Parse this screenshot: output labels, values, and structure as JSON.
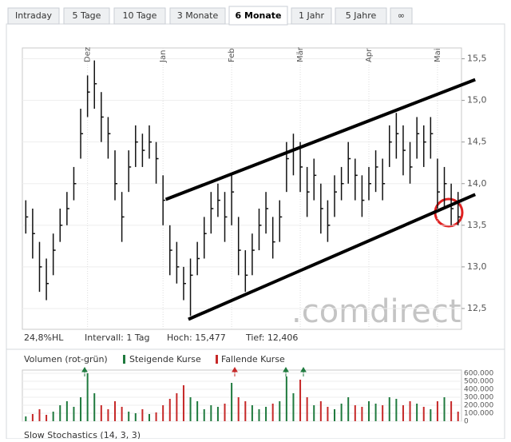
{
  "tabs": [
    "Intraday",
    "5 Tage",
    "10 Tage",
    "3 Monate",
    "6 Monate",
    "1 Jahr",
    "5 Jahre",
    "∞"
  ],
  "active_tab": 4,
  "info": [
    "24,8%HL",
    "Intervall: 1 Tag",
    "Hoch: 15,477",
    "Tief: 12,406"
  ],
  "volume_legend": {
    "title": "Volumen (rot-grün)",
    "up": "Steigende Kurse",
    "down": "Fallende Kurse"
  },
  "lower_panel_title": "Slow Stochastics (14, 3, 3)",
  "watermark": ".comdirect",
  "chart_data": [
    {
      "type": "ohlc",
      "grid": true,
      "color": "#111111",
      "categories": [
        null,
        null,
        null,
        null,
        null,
        null,
        null,
        null,
        null,
        "Dez",
        null,
        null,
        null,
        null,
        null,
        null,
        null,
        null,
        null,
        null,
        "Jan",
        null,
        null,
        null,
        null,
        null,
        null,
        null,
        null,
        null,
        "Feb",
        null,
        null,
        null,
        null,
        null,
        null,
        null,
        null,
        null,
        "Mär",
        null,
        null,
        null,
        null,
        null,
        null,
        null,
        null,
        null,
        "Apr",
        null,
        null,
        null,
        null,
        null,
        null,
        null,
        null,
        null,
        "Mai",
        null,
        null,
        null
      ],
      "high": [
        13.8,
        13.7,
        13.3,
        13.1,
        13.4,
        13.7,
        13.9,
        14.2,
        14.9,
        15.3,
        15.48,
        15.1,
        14.8,
        14.4,
        13.9,
        14.4,
        14.7,
        14.6,
        14.7,
        14.5,
        14.1,
        13.5,
        13.3,
        13.0,
        13.1,
        13.3,
        13.6,
        13.9,
        14.0,
        13.9,
        14.1,
        13.6,
        13.2,
        13.4,
        13.7,
        13.9,
        13.6,
        13.8,
        14.5,
        14.6,
        14.5,
        14.2,
        14.3,
        14.0,
        13.8,
        14.1,
        14.2,
        14.5,
        14.3,
        14.1,
        14.2,
        14.4,
        14.3,
        14.7,
        14.85,
        14.7,
        14.5,
        14.8,
        14.7,
        14.8,
        14.3,
        14.2,
        14.0,
        13.9
      ],
      "low": [
        13.4,
        13.1,
        12.7,
        12.6,
        12.9,
        13.3,
        13.5,
        13.8,
        14.3,
        14.8,
        14.9,
        14.5,
        14.3,
        13.8,
        13.3,
        13.9,
        14.2,
        14.2,
        14.3,
        14.0,
        13.5,
        12.9,
        12.8,
        12.6,
        12.41,
        12.9,
        13.1,
        13.4,
        13.6,
        13.3,
        13.5,
        12.9,
        12.7,
        12.9,
        13.2,
        13.4,
        13.1,
        13.3,
        13.9,
        14.1,
        13.9,
        13.6,
        13.8,
        13.4,
        13.3,
        13.6,
        13.8,
        14.0,
        13.8,
        13.6,
        13.8,
        13.9,
        13.8,
        14.2,
        14.3,
        14.1,
        14.0,
        14.3,
        14.2,
        14.3,
        13.7,
        13.7,
        13.5,
        13.5
      ],
      "close": [
        13.6,
        13.4,
        13.0,
        12.8,
        13.2,
        13.5,
        13.7,
        14.0,
        14.6,
        15.1,
        15.2,
        14.8,
        14.6,
        14.0,
        13.6,
        14.2,
        14.5,
        14.4,
        14.5,
        14.3,
        13.8,
        13.2,
        13.0,
        12.8,
        12.9,
        13.1,
        13.4,
        13.7,
        13.8,
        13.6,
        13.9,
        13.2,
        12.9,
        13.2,
        13.5,
        13.7,
        13.3,
        13.6,
        14.3,
        14.4,
        14.2,
        13.9,
        14.1,
        13.7,
        13.5,
        13.9,
        14.0,
        14.3,
        14.1,
        13.8,
        14.0,
        14.2,
        14.0,
        14.5,
        14.6,
        14.4,
        14.2,
        14.6,
        14.5,
        14.6,
        13.9,
        14.0,
        13.7,
        13.6
      ],
      "xlim": [
        0,
        64
      ],
      "ylim": [
        12.25,
        15.63
      ],
      "yticks": [
        {
          "value": 12.5,
          "label": "12,5"
        },
        {
          "value": 13,
          "label": "13,0"
        },
        {
          "value": 13.5,
          "label": "13,5"
        },
        {
          "value": 14,
          "label": "14,0"
        },
        {
          "value": 14.5,
          "label": "14,5"
        },
        {
          "value": 15,
          "label": "15,0"
        },
        {
          "value": 15.5,
          "label": "15,5"
        }
      ],
      "trendlines": [
        {
          "x": [
            20.9,
            66
          ],
          "y": [
            13.81,
            15.25
          ]
        },
        {
          "x": [
            24.2,
            66
          ],
          "y": [
            12.37,
            13.87
          ]
        }
      ]
    },
    {
      "type": "bar",
      "up_color": "#1f7a3e",
      "down_color": "#c62828",
      "values": [
        60000,
        90000,
        150000,
        80000,
        120000,
        200000,
        250000,
        180000,
        300000,
        600000,
        350000,
        200000,
        150000,
        250000,
        180000,
        120000,
        100000,
        150000,
        90000,
        110000,
        200000,
        280000,
        350000,
        450000,
        300000,
        250000,
        150000,
        200000,
        180000,
        220000,
        480000,
        300000,
        250000,
        200000,
        150000,
        180000,
        220000,
        250000,
        560000,
        350000,
        520000,
        300000,
        200000,
        250000,
        180000,
        150000,
        220000,
        300000,
        200000,
        180000,
        250000,
        220000,
        200000,
        300000,
        280000,
        200000,
        250000,
        220000,
        180000,
        150000,
        250000,
        300000,
        250000,
        120000
      ],
      "ylim": [
        0,
        640000
      ],
      "yticks": [
        0,
        {
          "value": 100000,
          "label": "100.000"
        },
        {
          "value": 200000,
          "label": "200.000"
        },
        {
          "value": 300000,
          "label": "300.000"
        },
        {
          "value": 400000,
          "label": "400.000"
        },
        {
          "value": 500000,
          "label": "500.000"
        },
        {
          "value": 600000,
          "label": "600.000"
        }
      ]
    }
  ]
}
